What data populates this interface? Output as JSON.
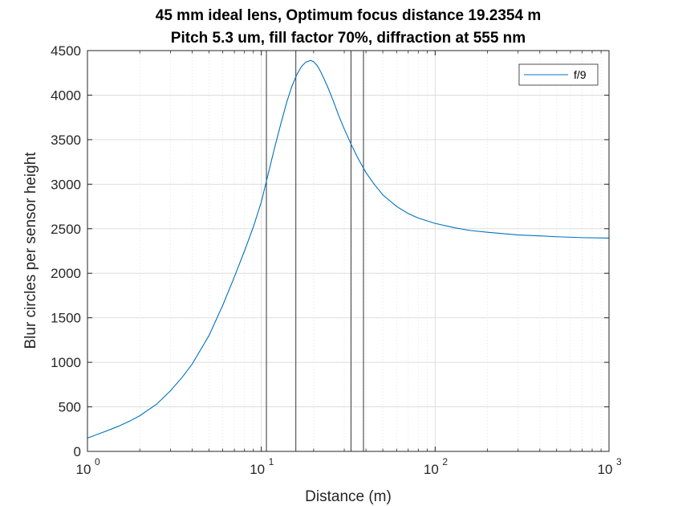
{
  "chart_data": {
    "type": "line",
    "title_line1": "45 mm ideal lens, Optimum focus distance 19.2354 m",
    "title_line2": "Pitch 5.3 um, fill factor 70%, diffraction at 555 nm",
    "xlabel": "Distance (m)",
    "ylabel": "Blur circles per sensor height",
    "xscale": "log",
    "xlim": [
      1,
      1000
    ],
    "ylim": [
      0,
      4500
    ],
    "grid": true,
    "legend_placement": "top-right",
    "x_ticks": [
      {
        "value": 1,
        "base": "10",
        "exp": "0"
      },
      {
        "value": 10,
        "base": "10",
        "exp": "1"
      },
      {
        "value": 100,
        "base": "10",
        "exp": "2"
      },
      {
        "value": 1000,
        "base": "10",
        "exp": "3"
      }
    ],
    "y_ticks": [
      {
        "value": 0,
        "label": "0"
      },
      {
        "value": 500,
        "label": "500"
      },
      {
        "value": 1000,
        "label": "1000"
      },
      {
        "value": 1500,
        "label": "1500"
      },
      {
        "value": 2000,
        "label": "2000"
      },
      {
        "value": 2500,
        "label": "2500"
      },
      {
        "value": 3000,
        "label": "3000"
      },
      {
        "value": 3500,
        "label": "3500"
      },
      {
        "value": 4000,
        "label": "4000"
      },
      {
        "value": 4500,
        "label": "4500"
      }
    ],
    "vertical_lines": [
      10.7,
      15.8,
      32.8,
      38.7
    ],
    "series": [
      {
        "name": "f/9",
        "color": "#0072bd",
        "x": [
          1,
          1.25,
          1.5,
          1.75,
          2,
          2.5,
          3,
          3.5,
          4,
          5,
          6,
          7,
          8,
          9,
          10,
          11,
          12,
          13,
          14,
          15,
          16,
          17,
          18,
          19.2354,
          20,
          21,
          22,
          24,
          26,
          28,
          30,
          33,
          36,
          40,
          45,
          50,
          60,
          70,
          80,
          100,
          130,
          160,
          200,
          300,
          400,
          500,
          700,
          1000
        ],
        "y": [
          150,
          220,
          280,
          340,
          400,
          530,
          680,
          830,
          980,
          1300,
          1640,
          1960,
          2250,
          2520,
          2800,
          3130,
          3430,
          3690,
          3920,
          4100,
          4230,
          4320,
          4370,
          4390,
          4375,
          4330,
          4260,
          4100,
          3930,
          3760,
          3620,
          3440,
          3290,
          3130,
          2990,
          2880,
          2750,
          2670,
          2620,
          2560,
          2510,
          2480,
          2460,
          2430,
          2420,
          2410,
          2400,
          2395
        ]
      }
    ]
  }
}
